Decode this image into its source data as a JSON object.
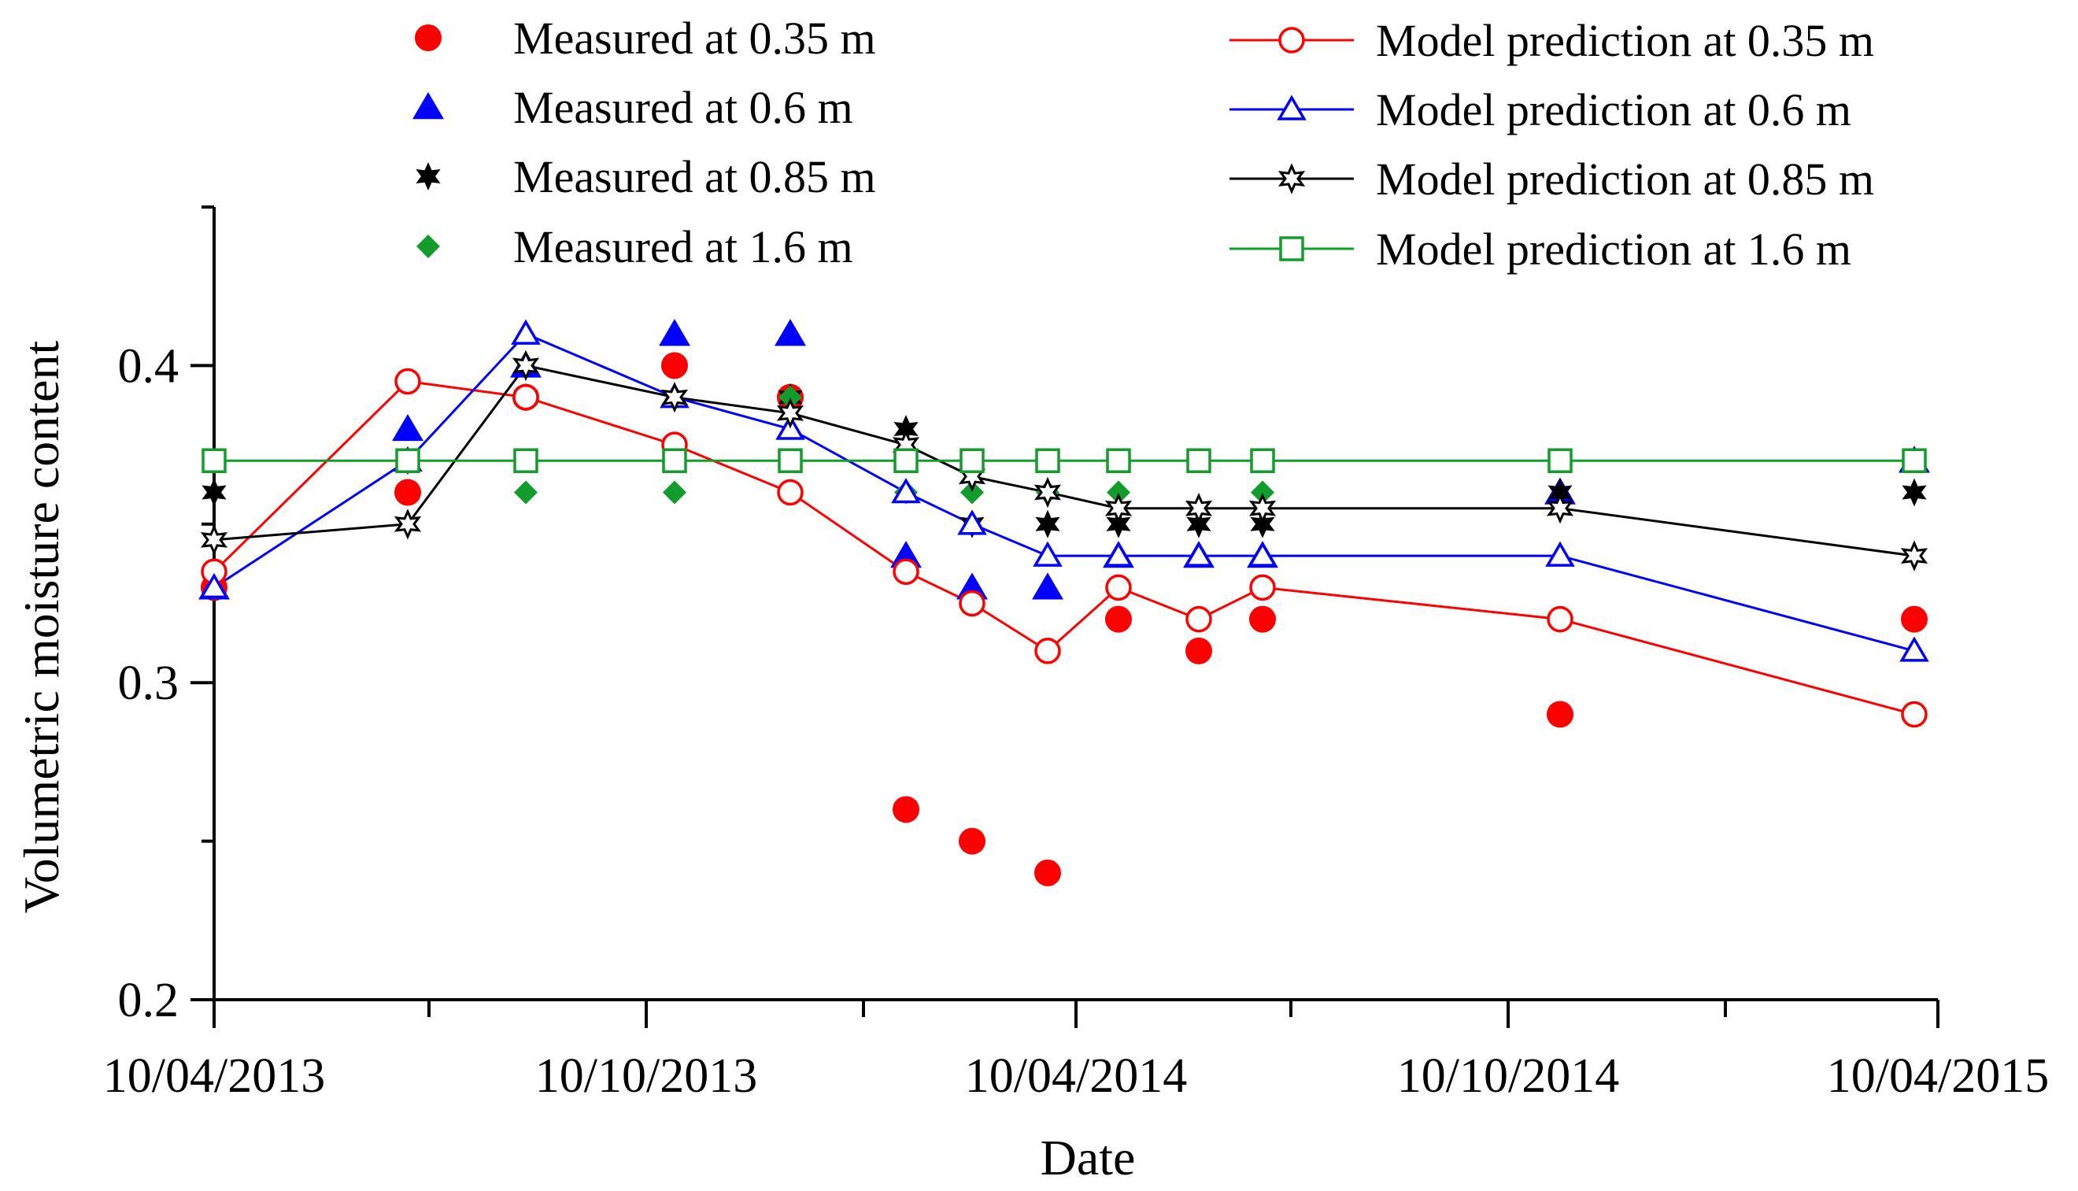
{
  "chart_data": {
    "type": "scatter",
    "title": "",
    "xlabel": "Date",
    "ylabel": "Volumetric moisture content",
    "xlim": [
      "10/04/2013",
      "10/04/2015"
    ],
    "ylim": [
      0.2,
      0.45
    ],
    "x_tick_labels": [
      "10/04/2013",
      "10/10/2013",
      "10/04/2014",
      "10/10/2014",
      "10/04/2015"
    ],
    "y_ticks": [
      "0.2",
      "0.3",
      "0.4"
    ],
    "grid": false,
    "legend_position": "top",
    "measured_series": [
      {
        "name": "Measured at 0.35 m",
        "color": "#ff0000",
        "marker": "circle-filled",
        "points": [
          {
            "date": "2013-04-10",
            "value": 0.33
          },
          {
            "date": "2013-07-01",
            "value": 0.36
          },
          {
            "date": "2013-08-20",
            "value": 0.39
          },
          {
            "date": "2013-10-22",
            "value": 0.4
          },
          {
            "date": "2013-12-10",
            "value": 0.39
          },
          {
            "date": "2014-01-28",
            "value": 0.26
          },
          {
            "date": "2014-02-25",
            "value": 0.25
          },
          {
            "date": "2014-03-29",
            "value": 0.24
          },
          {
            "date": "2014-04-28",
            "value": 0.32
          },
          {
            "date": "2014-06-01",
            "value": 0.31
          },
          {
            "date": "2014-06-28",
            "value": 0.32
          },
          {
            "date": "2014-11-01",
            "value": 0.29
          },
          {
            "date": "2015-03-31",
            "value": 0.32
          }
        ]
      },
      {
        "name": "Measured at 0.6 m",
        "color": "#0000ff",
        "marker": "triangle-filled",
        "points": [
          {
            "date": "2013-04-10",
            "value": 0.33
          },
          {
            "date": "2013-07-01",
            "value": 0.38
          },
          {
            "date": "2013-08-20",
            "value": 0.4
          },
          {
            "date": "2013-10-22",
            "value": 0.41
          },
          {
            "date": "2013-12-10",
            "value": 0.41
          },
          {
            "date": "2014-01-28",
            "value": 0.34
          },
          {
            "date": "2014-02-25",
            "value": 0.33
          },
          {
            "date": "2014-03-29",
            "value": 0.33
          },
          {
            "date": "2014-04-28",
            "value": 0.34
          },
          {
            "date": "2014-06-01",
            "value": 0.34
          },
          {
            "date": "2014-06-28",
            "value": 0.34
          },
          {
            "date": "2014-11-01",
            "value": 0.36
          },
          {
            "date": "2015-03-31",
            "value": 0.37
          }
        ]
      },
      {
        "name": "Measured at 0.85 m",
        "color": "#000000",
        "marker": "star-filled",
        "points": [
          {
            "date": "2013-04-10",
            "value": 0.36
          },
          {
            "date": "2013-07-01",
            "value": 0.37
          },
          {
            "date": "2013-08-20",
            "value": 0.39
          },
          {
            "date": "2013-10-22",
            "value": 0.39
          },
          {
            "date": "2013-12-10",
            "value": 0.39
          },
          {
            "date": "2014-01-28",
            "value": 0.38
          },
          {
            "date": "2014-02-25",
            "value": 0.35
          },
          {
            "date": "2014-03-29",
            "value": 0.35
          },
          {
            "date": "2014-04-28",
            "value": 0.35
          },
          {
            "date": "2014-06-01",
            "value": 0.35
          },
          {
            "date": "2014-06-28",
            "value": 0.35
          },
          {
            "date": "2014-11-01",
            "value": 0.36
          },
          {
            "date": "2015-03-31",
            "value": 0.36
          }
        ]
      },
      {
        "name": "Measured at 1.6 m",
        "color": "#129c2b",
        "marker": "diamond-filled",
        "points": [
          {
            "date": "2013-04-10",
            "value": 0.37
          },
          {
            "date": "2013-07-01",
            "value": 0.37
          },
          {
            "date": "2013-08-20",
            "value": 0.36
          },
          {
            "date": "2013-10-22",
            "value": 0.36
          },
          {
            "date": "2013-12-10",
            "value": 0.39
          },
          {
            "date": "2014-01-28",
            "value": 0.36
          },
          {
            "date": "2014-02-25",
            "value": 0.36
          },
          {
            "date": "2014-03-29",
            "value": 0.36
          },
          {
            "date": "2014-04-28",
            "value": 0.36
          },
          {
            "date": "2014-06-01",
            "value": 0.37
          },
          {
            "date": "2014-06-28",
            "value": 0.36
          },
          {
            "date": "2014-11-01",
            "value": 0.37
          },
          {
            "date": "2015-03-31",
            "value": 0.37
          }
        ]
      }
    ],
    "model_series": [
      {
        "name": "Model prediction at 0.35 m",
        "color": "#ff0000",
        "marker": "circle-open",
        "points": [
          {
            "date": "2013-04-10",
            "value": 0.335
          },
          {
            "date": "2013-07-01",
            "value": 0.395
          },
          {
            "date": "2013-08-20",
            "value": 0.39
          },
          {
            "date": "2013-10-22",
            "value": 0.375
          },
          {
            "date": "2013-12-10",
            "value": 0.36
          },
          {
            "date": "2014-01-28",
            "value": 0.335
          },
          {
            "date": "2014-02-25",
            "value": 0.325
          },
          {
            "date": "2014-03-29",
            "value": 0.31
          },
          {
            "date": "2014-04-28",
            "value": 0.33
          },
          {
            "date": "2014-06-01",
            "value": 0.32
          },
          {
            "date": "2014-06-28",
            "value": 0.33
          },
          {
            "date": "2014-11-01",
            "value": 0.32
          },
          {
            "date": "2015-03-31",
            "value": 0.29
          }
        ]
      },
      {
        "name": "Model prediction at 0.6 m",
        "color": "#0000ff",
        "marker": "triangle-open",
        "points": [
          {
            "date": "2013-04-10",
            "value": 0.33
          },
          {
            "date": "2013-07-01",
            "value": 0.37
          },
          {
            "date": "2013-08-20",
            "value": 0.41
          },
          {
            "date": "2013-10-22",
            "value": 0.39
          },
          {
            "date": "2013-12-10",
            "value": 0.38
          },
          {
            "date": "2014-01-28",
            "value": 0.36
          },
          {
            "date": "2014-02-25",
            "value": 0.35
          },
          {
            "date": "2014-03-29",
            "value": 0.34
          },
          {
            "date": "2014-04-28",
            "value": 0.34
          },
          {
            "date": "2014-06-01",
            "value": 0.34
          },
          {
            "date": "2014-06-28",
            "value": 0.34
          },
          {
            "date": "2014-11-01",
            "value": 0.34
          },
          {
            "date": "2015-03-31",
            "value": 0.31
          }
        ]
      },
      {
        "name": "Model prediction at 0.85 m",
        "color": "#000000",
        "marker": "star-open",
        "points": [
          {
            "date": "2013-04-10",
            "value": 0.345
          },
          {
            "date": "2013-07-01",
            "value": 0.35
          },
          {
            "date": "2013-08-20",
            "value": 0.4
          },
          {
            "date": "2013-10-22",
            "value": 0.39
          },
          {
            "date": "2013-12-10",
            "value": 0.385
          },
          {
            "date": "2014-01-28",
            "value": 0.375
          },
          {
            "date": "2014-02-25",
            "value": 0.365
          },
          {
            "date": "2014-03-29",
            "value": 0.36
          },
          {
            "date": "2014-04-28",
            "value": 0.355
          },
          {
            "date": "2014-06-01",
            "value": 0.355
          },
          {
            "date": "2014-06-28",
            "value": 0.355
          },
          {
            "date": "2014-11-01",
            "value": 0.355
          },
          {
            "date": "2015-03-31",
            "value": 0.34
          }
        ]
      },
      {
        "name": "Model prediction at 1.6 m",
        "color": "#129c2b",
        "marker": "square-open",
        "points": [
          {
            "date": "2013-04-10",
            "value": 0.37
          },
          {
            "date": "2013-07-01",
            "value": 0.37
          },
          {
            "date": "2013-08-20",
            "value": 0.37
          },
          {
            "date": "2013-10-22",
            "value": 0.37
          },
          {
            "date": "2013-12-10",
            "value": 0.37
          },
          {
            "date": "2014-01-28",
            "value": 0.37
          },
          {
            "date": "2014-02-25",
            "value": 0.37
          },
          {
            "date": "2014-03-29",
            "value": 0.37
          },
          {
            "date": "2014-04-28",
            "value": 0.37
          },
          {
            "date": "2014-06-01",
            "value": 0.37
          },
          {
            "date": "2014-06-28",
            "value": 0.37
          },
          {
            "date": "2014-11-01",
            "value": 0.37
          },
          {
            "date": "2015-03-31",
            "value": 0.37
          }
        ]
      }
    ]
  }
}
